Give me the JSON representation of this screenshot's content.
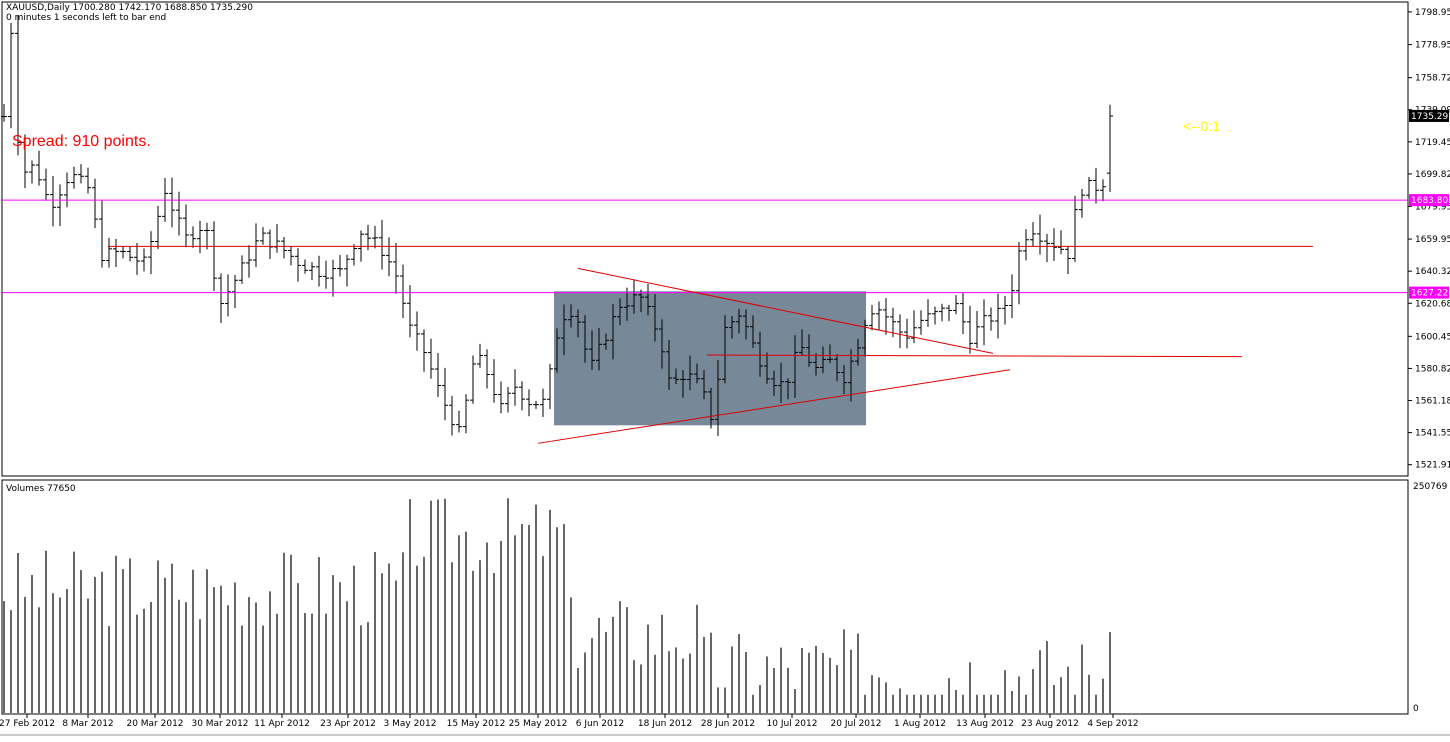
{
  "header": {
    "symbol_line": "XAUUSD,Daily  1700.280 1742.170 1688.850 1735.290",
    "timer_line": "0 minutes 1 seconds left to bar end"
  },
  "annotations": {
    "spread": "Spread: 910 points.",
    "countdown": "<--0:1"
  },
  "volume_panel": {
    "label": "Volumes 77650",
    "axis_top": "250769",
    "axis_zero": "0"
  },
  "colors": {
    "bars": "#000000",
    "support_resistance": "#ff00ff",
    "trendline": "#dd0000",
    "range_box": "#778899",
    "countdown": "#ffff00",
    "spread": "#ff0000"
  },
  "chart_data": {
    "type": "ohlc",
    "title": "",
    "ylim": [
      1515,
      1805
    ],
    "y_ticks": [
      "1798.95",
      "1778.95",
      "1758.72",
      "1739.09",
      "1719.45",
      "1699.82",
      "1679.95",
      "1659.95",
      "1640.32",
      "1620.68",
      "1600.45",
      "1580.82",
      "1561.18",
      "1541.55",
      "1521.91"
    ],
    "x_ticks": [
      "27 Feb 2012",
      "8 Mar 2012",
      "20 Mar 2012",
      "30 Mar 2012",
      "11 Apr 2012",
      "23 Apr 2012",
      "3 May 2012",
      "15 May 2012",
      "25 May 2012",
      "6 Jun 2012",
      "18 Jun 2012",
      "28 Jun 2012",
      "10 Jul 2012",
      "20 Jul 2012",
      "1 Aug 2012",
      "13 Aug 2012",
      "23 Aug 2012",
      "4 Sep 2012"
    ],
    "price_labels": {
      "current": "1735.29",
      "resistance": "1683.80",
      "support": "1627.22"
    },
    "horizontal_levels": [
      1683.8,
      1627.22,
      1655.5
    ],
    "volumes_max": 250769
  }
}
